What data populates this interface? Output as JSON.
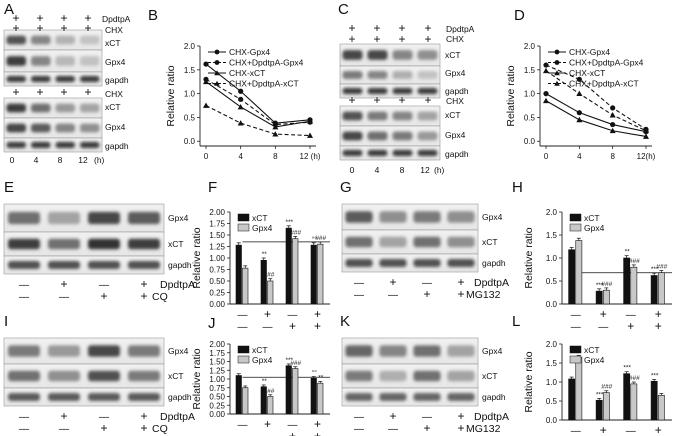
{
  "panel_labels": [
    "A",
    "B",
    "C",
    "D",
    "E",
    "F",
    "G",
    "H",
    "I",
    "J",
    "K",
    "L"
  ],
  "blot_labels": {
    "dpdtpa": "DpdtpA",
    "chx": "CHX",
    "xct": "xCT",
    "gpx4": "Gpx4",
    "gapdh": "gapdh",
    "cq": "CQ",
    "mg132": "MG132",
    "plus": "+",
    "minus": "—",
    "time_unit": "(h)"
  },
  "sig_marks": {
    "s1": "*",
    "s2": "**",
    "s3": "***",
    "h2": "##",
    "h3": "###",
    "o2": "°°",
    "o3": "°°°"
  },
  "chart_data": [
    {
      "id": "B",
      "type": "line",
      "x": [
        0,
        4,
        8,
        12
      ],
      "xticks": [
        "0",
        "4",
        "8",
        "12 (h)"
      ],
      "ylabel": "Relative ratio",
      "ylim": [
        -0.1,
        2.0
      ],
      "yticks": [
        "0.0",
        "0.5",
        "1.0",
        "1.5",
        "2.0"
      ],
      "series": [
        {
          "name": "CHX-Gpx4",
          "values": [
            1.62,
            1.05,
            0.38,
            0.45
          ],
          "dashed": false,
          "marker": "circle"
        },
        {
          "name": "CHX+DpdtpA-Gpx4",
          "values": [
            1.3,
            0.88,
            0.35,
            0.4
          ],
          "dashed": true,
          "marker": "circle"
        },
        {
          "name": "CHX-xCT",
          "values": [
            1.25,
            0.72,
            0.3,
            0.42
          ],
          "dashed": false,
          "marker": "triangle"
        },
        {
          "name": "CHX+DpdtpA-xCT",
          "values": [
            0.75,
            0.38,
            0.15,
            0.12
          ],
          "dashed": true,
          "marker": "triangle"
        }
      ]
    },
    {
      "id": "D",
      "type": "line",
      "x": [
        0,
        4,
        8,
        12
      ],
      "xticks": [
        "0",
        "4",
        "8",
        "12(h)"
      ],
      "ylabel": "Relative ratio",
      "ylim": [
        -0.1,
        2.0
      ],
      "yticks": [
        "0.0",
        "0.5",
        "1.0",
        "1.5",
        "2.0"
      ],
      "series": [
        {
          "name": "CHX-Gpx4",
          "values": [
            1.0,
            0.6,
            0.35,
            0.2
          ],
          "dashed": false,
          "marker": "circle"
        },
        {
          "name": "CHX+DpdtpA-Gpx4",
          "values": [
            1.6,
            1.3,
            0.7,
            0.25
          ],
          "dashed": true,
          "marker": "circle"
        },
        {
          "name": "CHX-xCT",
          "values": [
            0.85,
            0.45,
            0.22,
            0.1
          ],
          "dashed": false,
          "marker": "triangle"
        },
        {
          "name": "CHX+DpdtpA-xCT",
          "values": [
            1.48,
            1.0,
            0.55,
            0.22
          ],
          "dashed": true,
          "marker": "triangle"
        }
      ]
    },
    {
      "id": "F",
      "type": "bar",
      "ylabel": "Relative ratio",
      "ylim": [
        0,
        2.0
      ],
      "yticks": [
        "0.00",
        "0.25",
        "0.50",
        "0.75",
        "1.00",
        "1.25",
        "1.50",
        "1.75",
        "2.00"
      ],
      "series": [
        {
          "name": "xCT",
          "values": [
            1.28,
            0.95,
            1.65,
            1.28
          ],
          "color": "#111111"
        },
        {
          "name": "Gpx4",
          "values": [
            0.78,
            0.5,
            1.42,
            1.3
          ],
          "color": "#c8c8c8"
        }
      ],
      "refline": 1.35,
      "marks": [
        [
          null,
          null
        ],
        [
          "**",
          "##"
        ],
        [
          "***",
          "###"
        ],
        [
          "°°",
          "###"
        ]
      ]
    },
    {
      "id": "H",
      "type": "bar",
      "ylabel": "Relative ratio",
      "ylim": [
        0,
        2.0
      ],
      "yticks": [
        "0.0",
        "0.5",
        "1.0",
        "1.5",
        "2.0"
      ],
      "series": [
        {
          "name": "xCT",
          "values": [
            1.18,
            0.28,
            1.0,
            0.62
          ],
          "color": "#111111"
        },
        {
          "name": "Gpx4",
          "values": [
            1.38,
            0.3,
            0.8,
            0.68
          ],
          "color": "#c8c8c8"
        }
      ],
      "refline": 0.68,
      "marks": [
        [
          null,
          null
        ],
        [
          "***",
          "###"
        ],
        [
          "**",
          "###"
        ],
        [
          "***",
          "###"
        ]
      ]
    },
    {
      "id": "J",
      "type": "bar",
      "ylabel": "Relative ratio",
      "ylim": [
        0,
        2.0
      ],
      "yticks": [
        "0.00",
        "0.25",
        "0.50",
        "0.75",
        "1.00",
        "1.25",
        "1.50",
        "1.75",
        "2.00"
      ],
      "series": [
        {
          "name": "xCT",
          "values": [
            1.1,
            0.78,
            1.38,
            1.02
          ],
          "color": "#111111"
        },
        {
          "name": "Gpx4",
          "values": [
            0.75,
            0.5,
            1.3,
            0.88
          ],
          "color": "#c8c8c8"
        }
      ],
      "refline": 1.05,
      "marks": [
        [
          null,
          null
        ],
        [
          "**",
          "##"
        ],
        [
          "***",
          "###"
        ],
        [
          "°°",
          "**"
        ]
      ]
    },
    {
      "id": "L",
      "type": "bar",
      "ylabel": "Relative ratio",
      "ylim": [
        0,
        2.0
      ],
      "yticks": [
        "0.0",
        "0.5",
        "1.0",
        "1.5",
        "2.0"
      ],
      "series": [
        {
          "name": "xCT",
          "values": [
            1.08,
            0.52,
            1.22,
            1.02
          ],
          "color": "#111111"
        },
        {
          "name": "Gpx4",
          "values": [
            1.65,
            0.72,
            0.95,
            0.65
          ],
          "color": "#c8c8c8"
        }
      ],
      "refline": null,
      "marks": [
        [
          null,
          null
        ],
        [
          "***",
          "###"
        ],
        [
          "***",
          "###"
        ],
        [
          "***",
          null
        ]
      ]
    }
  ]
}
